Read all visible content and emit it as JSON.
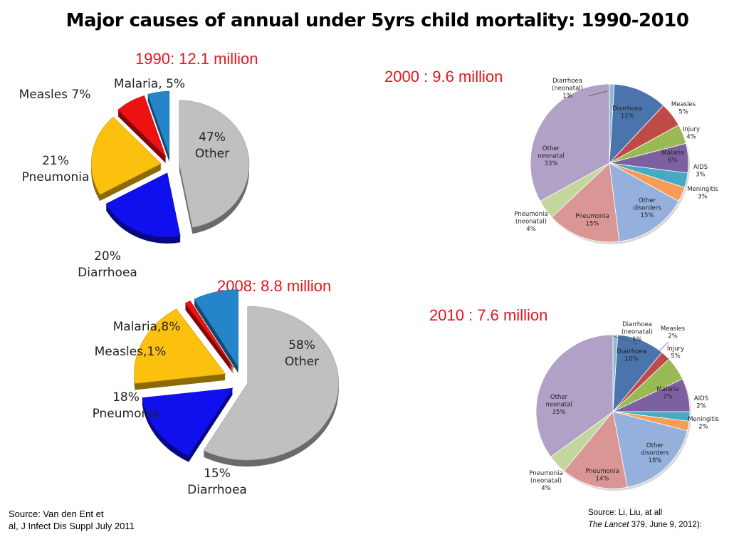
{
  "title": "Major causes of annual under 5yrs child mortality: 1990-2010",
  "sources": {
    "left_line1": "Source: Van den Ent et",
    "left_line2": "al, J Infect Dis Suppl July 2011",
    "right_line1": "Source: Li, Liu, at  all",
    "right_italic": "The Lancet",
    "right_rest": " 379,  June 9, 2012):"
  },
  "chart_data": [
    {
      "type": "pie",
      "title": "1990: 12.1 million",
      "slices": [
        {
          "name": "Other",
          "value": 47,
          "color": "#c0c0c0",
          "label": "47%\nOther"
        },
        {
          "name": "Diarrhoea",
          "value": 20,
          "color": "#1010ee",
          "label": "20%\nDiarrhoea"
        },
        {
          "name": "Pneumonia",
          "value": 21,
          "color": "#fcc10f",
          "label": "21%\nPneumonia"
        },
        {
          "name": "Measles",
          "value": 7,
          "color": "#ee1111",
          "label": "Measles 7%"
        },
        {
          "name": "Malaria",
          "value": 5,
          "color": "#2585c8",
          "label": "Malaria, 5%"
        }
      ]
    },
    {
      "type": "pie",
      "title": "2008: 8.8 million",
      "slices": [
        {
          "name": "Other",
          "value": 58,
          "color": "#c0c0c0",
          "label": "58%\nOther"
        },
        {
          "name": "Diarrhoea",
          "value": 15,
          "color": "#1010ee",
          "label": "15%\nDiarrhoea"
        },
        {
          "name": "Pneumonia",
          "value": 18,
          "color": "#fcc10f",
          "label": "18%\nPneumonia"
        },
        {
          "name": "Measles",
          "value": 1,
          "color": "#ee1111",
          "label": "Measles,1%"
        },
        {
          "name": "Malaria",
          "value": 8,
          "color": "#2585c8",
          "label": "Malaria,8%"
        }
      ]
    },
    {
      "type": "pie",
      "title": "2000 : 9.6 million",
      "slices": [
        {
          "name": "Diarrhoea (neonatal)",
          "value": 1,
          "color": "#8fb8d6",
          "label": "Diarrhoea\n(neonatal)\n1%"
        },
        {
          "name": "Diarrhoea",
          "value": 11,
          "color": "#4a74ab",
          "label": "Diarrhoea\n11%"
        },
        {
          "name": "Measles",
          "value": 5,
          "color": "#be4b48",
          "label": "Measles\n5%"
        },
        {
          "name": "Injury",
          "value": 4,
          "color": "#98b954",
          "label": "Injury\n4%"
        },
        {
          "name": "Malaria",
          "value": 6,
          "color": "#7d60a0",
          "label": "Malaria\n6%"
        },
        {
          "name": "AIDS",
          "value": 3,
          "color": "#46aac4",
          "label": "AIDS\n3%"
        },
        {
          "name": "Meningitis",
          "value": 3,
          "color": "#f59d56",
          "label": "Meningitis\n3%"
        },
        {
          "name": "Other disorders",
          "value": 15,
          "color": "#95b0dc",
          "label": "Other\ndisorders\n15%"
        },
        {
          "name": "Pneumonia",
          "value": 15,
          "color": "#d99694",
          "label": "Pneumonia\n15%"
        },
        {
          "name": "Pneumonia (neonatal)",
          "value": 4,
          "color": "#c3d69b",
          "label": "Pneumonia\n(neonatal)\n4%"
        },
        {
          "name": "Other neonatal",
          "value": 33,
          "color": "#b2a1c7",
          "label": "Other\nneonatal\n33%"
        }
      ]
    },
    {
      "type": "pie",
      "title": "2010 : 7.6 million",
      "slices": [
        {
          "name": "Diarrhoea (neonatal)",
          "value": 1,
          "color": "#8fb8d6",
          "label": "Diarrhoea\n(neonatal)\n1%"
        },
        {
          "name": "Diarrhoea",
          "value": 10,
          "color": "#4a74ab",
          "label": "Diarrhoea\n10%"
        },
        {
          "name": "Measles",
          "value": 2,
          "color": "#be4b48",
          "label": "Measles\n2%"
        },
        {
          "name": "Injury",
          "value": 5,
          "color": "#98b954",
          "label": "Injury\n5%"
        },
        {
          "name": "Malaria",
          "value": 7,
          "color": "#7d60a0",
          "label": "Malaria\n7%"
        },
        {
          "name": "AIDS",
          "value": 2,
          "color": "#46aac4",
          "label": "AIDS\n2%"
        },
        {
          "name": "Meningitis",
          "value": 2,
          "color": "#f59d56",
          "label": "Meningitis\n2%"
        },
        {
          "name": "Other disorders",
          "value": 18,
          "color": "#95b0dc",
          "label": "Other\ndisorders\n18%"
        },
        {
          "name": "Pneumonia",
          "value": 14,
          "color": "#d99694",
          "label": "Pneumonia\n14%"
        },
        {
          "name": "Pneumonia (neonatal)",
          "value": 4,
          "color": "#c3d69b",
          "label": "Pneumonia\n(neonatal)\n4%"
        },
        {
          "name": "Other neonatal",
          "value": 35,
          "color": "#b2a1c7",
          "label": "Other\nneonatal\n35%"
        }
      ]
    }
  ]
}
